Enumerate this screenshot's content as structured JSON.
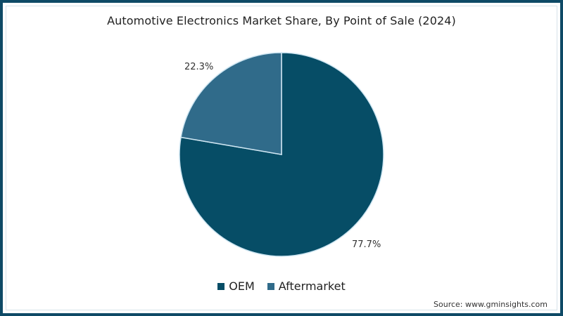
{
  "chart_data": {
    "type": "pie",
    "title": "Automotive Electronics Market Share, By Point of Sale (2024)",
    "categories": [
      "OEM",
      "Aftermarket"
    ],
    "values": [
      77.7,
      22.3
    ],
    "unit": "%",
    "colors": [
      "#064d66",
      "#306b8a"
    ],
    "data_labels": [
      "77.7%",
      "22.3%"
    ],
    "legend_position": "bottom",
    "source": "Source: www.gminsights.com"
  },
  "header": {
    "title": "Automotive Electronics Market Share, By Point of Sale (2024)"
  },
  "labels": {
    "oem": "77.7%",
    "aftermarket": "22.3%"
  },
  "legend": [
    {
      "label": "OEM",
      "color": "#064d66"
    },
    {
      "label": "Aftermarket",
      "color": "#306b8a"
    }
  ],
  "footer": {
    "source": "Source: www.gminsights.com"
  },
  "theme": {
    "border": "#0e4a66",
    "separator": "#cfe6f2"
  }
}
